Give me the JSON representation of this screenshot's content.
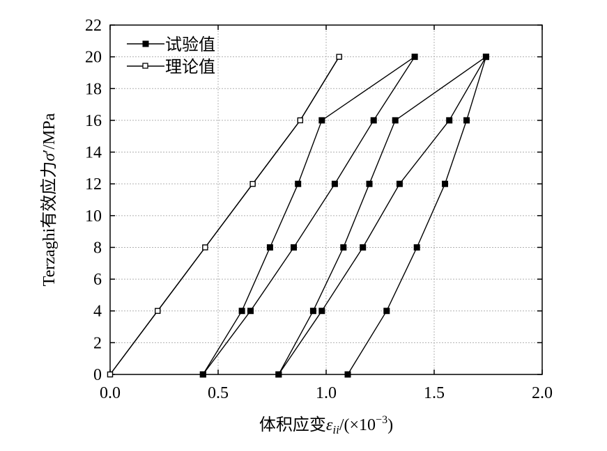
{
  "chart_data": {
    "type": "line",
    "title": "",
    "xlabel": "体积应变",
    "xlabel_symbol": "ε",
    "xlabel_subscript": "ii",
    "xlabel_unit": "/(×10",
    "xlabel_unit_exp": "−3",
    "xlabel_unit_close": ")",
    "ylabel": "Terzaghi有效应力",
    "ylabel_symbol": "σ",
    "ylabel_prime": "′",
    "ylabel_unit": "/MPa",
    "xlim": [
      0.0,
      2.0
    ],
    "ylim": [
      0,
      22
    ],
    "xticks": [
      0.0,
      0.5,
      1.0,
      1.5,
      2.0
    ],
    "xtick_labels": [
      "0.0",
      "0.5",
      "1.0",
      "1.5",
      "2.0"
    ],
    "yticks": [
      0,
      2,
      4,
      6,
      8,
      10,
      12,
      14,
      16,
      18,
      20,
      22
    ],
    "ytick_labels": [
      "0",
      "2",
      "4",
      "6",
      "8",
      "10",
      "12",
      "14",
      "16",
      "18",
      "20",
      "22"
    ],
    "grid": true,
    "legend_position": "top-left",
    "legend": [
      {
        "label": "试验值",
        "marker": "filled-square"
      },
      {
        "label": "理论值",
        "marker": "open-square"
      }
    ],
    "series": [
      {
        "name": "试验值",
        "marker": "filled-square",
        "x": [
          0.43,
          0.61,
          0.74,
          0.87,
          0.98,
          1.41,
          1.22,
          1.04,
          0.85,
          0.65,
          0.43
        ],
        "y": [
          0,
          4,
          8,
          12,
          16,
          20,
          16,
          12,
          8,
          4,
          0
        ]
      },
      {
        "name": "试验值",
        "marker": "filled-square",
        "x": [
          0.78,
          0.94,
          1.08,
          1.2,
          1.32,
          1.74,
          1.57,
          1.34,
          1.17,
          0.98,
          0.78
        ],
        "y": [
          0,
          4,
          8,
          12,
          16,
          20,
          16,
          12,
          8,
          4,
          0
        ]
      },
      {
        "name": "试验值",
        "marker": "filled-square",
        "x": [
          1.74,
          1.65,
          1.55,
          1.42,
          1.28,
          1.1
        ],
        "y": [
          20,
          16,
          12,
          8,
          4,
          0
        ]
      },
      {
        "name": "理论值",
        "marker": "open-square",
        "x": [
          0.0,
          0.22,
          0.44,
          0.66,
          0.88,
          1.06
        ],
        "y": [
          0,
          4,
          8,
          12,
          16,
          20
        ]
      },
      {
        "name": "理论值",
        "marker": "open-square",
        "x": [
          1.06,
          0.88,
          0.66,
          0.44,
          0.22,
          0.0
        ],
        "y": [
          20,
          16,
          12,
          8,
          4,
          0
        ]
      }
    ]
  }
}
